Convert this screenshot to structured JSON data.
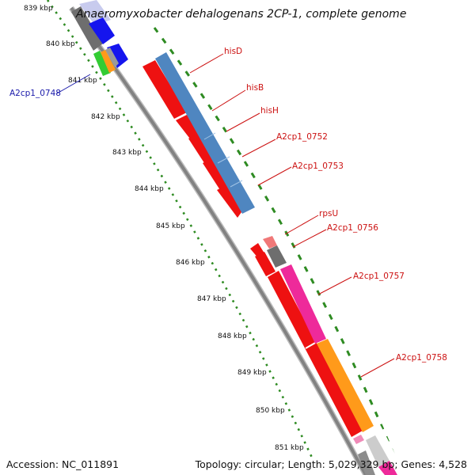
{
  "title": "Anaeromyxobacter dehalogenans 2CP-1, complete genome",
  "accession_text": "Accession: NC_011891",
  "topology_text": "Topology: circular; Length: 5,029,329 bp; Genes: 4,528",
  "colors": {
    "backbone": "#8c8c8c",
    "dotted_track": "#2e8b22",
    "gene_red": "#ee1111",
    "gene_blue": "#4f86c0",
    "label_red": "#cc1111",
    "label_blue": "#1a1aaa"
  },
  "ticks": [
    "839 kbp",
    "840 kbp",
    "841 kbp",
    "842 kbp",
    "843 kbp",
    "844 kbp",
    "845 kbp",
    "846 kbp",
    "847 kbp",
    "848 kbp",
    "849 kbp",
    "850 kbp",
    "851 kbp"
  ],
  "gene_labels": [
    {
      "text": "hisD",
      "color": "#cc1111"
    },
    {
      "text": "hisB",
      "color": "#cc1111"
    },
    {
      "text": "hisH",
      "color": "#cc1111"
    },
    {
      "text": "A2cp1_0752",
      "color": "#cc1111"
    },
    {
      "text": "A2cp1_0753",
      "color": "#cc1111"
    },
    {
      "text": "rpsU",
      "color": "#cc1111"
    },
    {
      "text": "A2cp1_0756",
      "color": "#cc1111"
    },
    {
      "text": "A2cp1_0757",
      "color": "#cc1111"
    },
    {
      "text": "A2cp1_0758",
      "color": "#cc1111"
    },
    {
      "text": "A2cp1_0748",
      "color": "#1a1aaa"
    }
  ]
}
